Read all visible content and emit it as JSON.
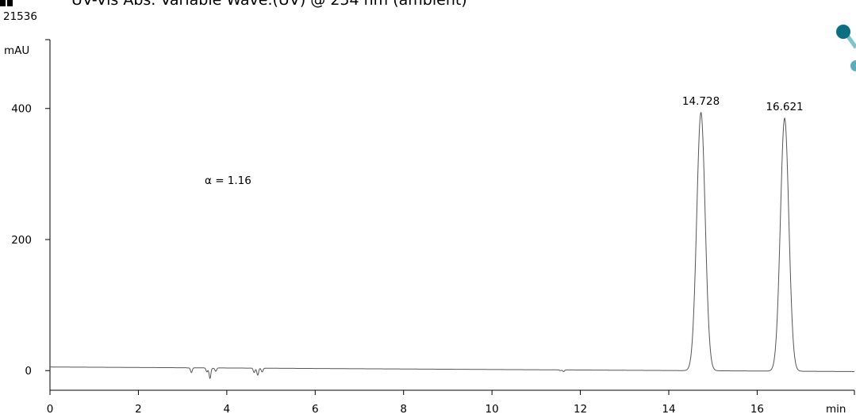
{
  "chart_data": {
    "type": "line",
    "header": {
      "corner_value": "21536",
      "title_fragment": "UV-Vis Abs. Variable Wave.(UV) @ 254 nm (ambient)"
    },
    "xlabel": "min",
    "ylabel": "mAU",
    "xlim": [
      0,
      18.2
    ],
    "ylim": [
      -30,
      505
    ],
    "x_ticks": [
      0,
      2,
      4,
      6,
      8,
      10,
      12,
      14,
      16
    ],
    "y_ticks": [
      0,
      200,
      400
    ],
    "grid": false,
    "line_color": "#555555",
    "baseline": {
      "start_value": 5.5,
      "end_value": -1.5
    },
    "peaks": [
      {
        "rt": 14.728,
        "height": 394,
        "sigma": 0.095,
        "label": "14.728"
      },
      {
        "rt": 16.621,
        "height": 386,
        "sigma": 0.095,
        "label": "16.621"
      }
    ],
    "disturbances": [
      {
        "x": 3.12,
        "y": 4
      },
      {
        "x": 3.2,
        "y": -3
      },
      {
        "x": 3.55,
        "y": -2
      },
      {
        "x": 3.62,
        "y": -12
      },
      {
        "x": 3.68,
        "y": 3.5
      },
      {
        "x": 3.75,
        "y": -1
      },
      {
        "x": 4.62,
        "y": -3
      },
      {
        "x": 4.7,
        "y": -7
      },
      {
        "x": 4.8,
        "y": -2
      },
      {
        "x": 11.55,
        "y": 0
      },
      {
        "x": 11.62,
        "y": -1.5
      }
    ],
    "annotations": [
      {
        "text": "α = 1.16",
        "x": 3.5,
        "y": 285
      }
    ],
    "logo_colors": [
      "#0a6f80",
      "#5aaebb",
      "#7cc5d0"
    ]
  }
}
